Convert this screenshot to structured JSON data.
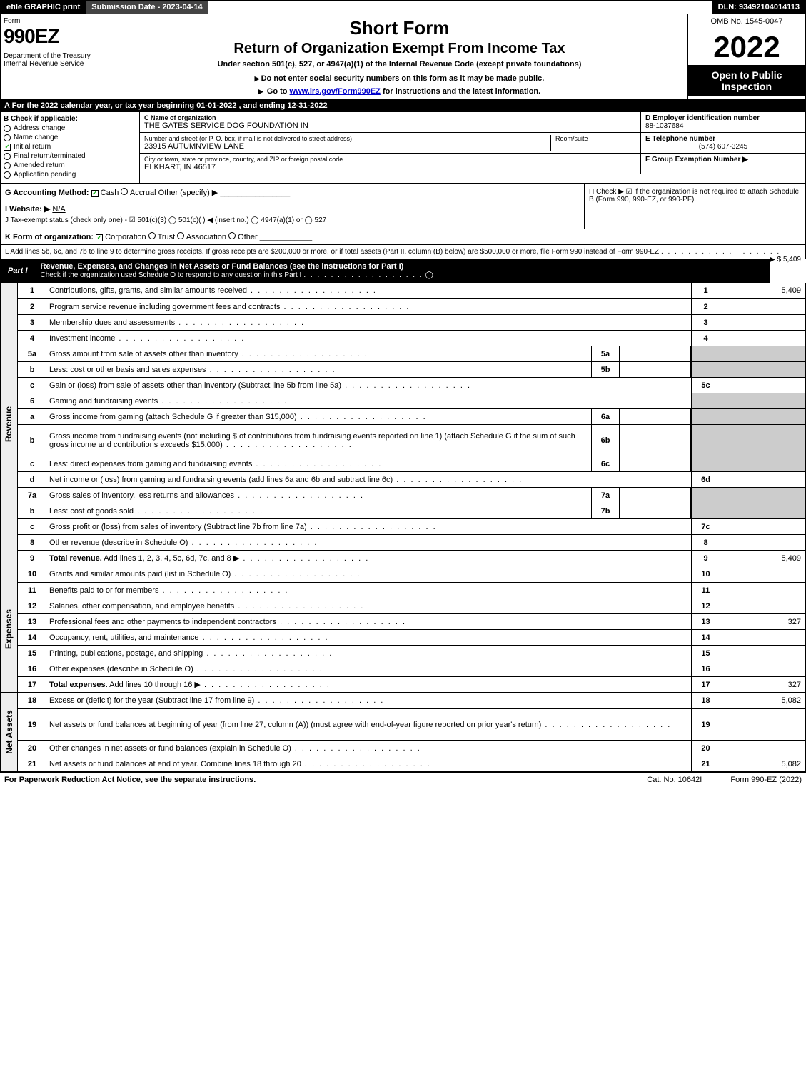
{
  "topbar": {
    "efile": "efile GRAPHIC print",
    "submission": "Submission Date - 2023-04-14",
    "dln": "DLN: 93492104014113"
  },
  "header": {
    "form_word": "Form",
    "form_number": "990EZ",
    "dept": "Department of the Treasury\nInternal Revenue Service",
    "short_form": "Short Form",
    "return_title": "Return of Organization Exempt From Income Tax",
    "under_section": "Under section 501(c), 527, or 4947(a)(1) of the Internal Revenue Code (except private foundations)",
    "do_not": "Do not enter social security numbers on this form as it may be made public.",
    "go_to_prefix": "Go to ",
    "go_to_link": "www.irs.gov/Form990EZ",
    "go_to_suffix": " for instructions and the latest information.",
    "omb": "OMB No. 1545-0047",
    "year": "2022",
    "open_to": "Open to Public Inspection"
  },
  "row_a": "A  For the 2022 calendar year, or tax year beginning 01-01-2022 , and ending 12-31-2022",
  "section_b": {
    "label": "B  Check if applicable:",
    "checks": [
      {
        "label": "Address change",
        "checked": false,
        "round": true
      },
      {
        "label": "Name change",
        "checked": false,
        "round": true
      },
      {
        "label": "Initial return",
        "checked": true,
        "round": false
      },
      {
        "label": "Final return/terminated",
        "checked": false,
        "round": true
      },
      {
        "label": "Amended return",
        "checked": false,
        "round": true
      },
      {
        "label": "Application pending",
        "checked": false,
        "round": true
      }
    ]
  },
  "section_c": {
    "name_label": "C Name of organization",
    "name": "THE GATES SERVICE DOG FOUNDATION IN",
    "addr_label": "Number and street (or P. O. box, if mail is not delivered to street address)",
    "addr": "23915 AUTUMNVIEW LANE",
    "room_label": "Room/suite",
    "city_label": "City or town, state or province, country, and ZIP or foreign postal code",
    "city": "ELKHART, IN  46517"
  },
  "section_de": {
    "d_label": "D Employer identification number",
    "d_val": "88-1037684",
    "e_label": "E Telephone number",
    "e_val": "(574) 607-3245",
    "f_label": "F Group Exemption Number ▶"
  },
  "row_g": {
    "label": "G Accounting Method:",
    "cash": "Cash",
    "accrual": "Accrual",
    "other": "Other (specify) ▶"
  },
  "row_h": {
    "text": "H  Check ▶ ☑ if the organization is not required to attach Schedule B (Form 990, 990-EZ, or 990-PF)."
  },
  "row_i": {
    "label": "I Website: ▶",
    "val": "N/A"
  },
  "row_j": "J Tax-exempt status (check only one) - ☑ 501(c)(3) ◯ 501(c)(  ) ◀ (insert no.) ◯ 4947(a)(1) or ◯ 527",
  "row_k": {
    "label": "K Form of organization:",
    "corp": "Corporation",
    "trust": "Trust",
    "assoc": "Association",
    "other": "Other"
  },
  "row_l": {
    "text": "L Add lines 5b, 6c, and 7b to line 9 to determine gross receipts. If gross receipts are $200,000 or more, or if total assets (Part II, column (B) below) are $500,000 or more, file Form 990 instead of Form 990-EZ",
    "val": "▶ $ 5,409"
  },
  "part1": {
    "label": "Part I",
    "title": "Revenue, Expenses, and Changes in Net Assets or Fund Balances (see the instructions for Part I)",
    "sub": "Check if the organization used Schedule O to respond to any question in this Part I",
    "sub_check": "◯"
  },
  "revenue_side": "Revenue",
  "expenses_side": "Expenses",
  "netassets_side": "Net Assets",
  "lines_rev": [
    {
      "n": "1",
      "desc": "Contributions, gifts, grants, and similar amounts received",
      "rn": "1",
      "rv": "5,409"
    },
    {
      "n": "2",
      "desc": "Program service revenue including government fees and contracts",
      "rn": "2",
      "rv": ""
    },
    {
      "n": "3",
      "desc": "Membership dues and assessments",
      "rn": "3",
      "rv": ""
    },
    {
      "n": "4",
      "desc": "Investment income",
      "rn": "4",
      "rv": ""
    },
    {
      "n": "5a",
      "desc": "Gross amount from sale of assets other than inventory",
      "sn": "5a",
      "sv": "",
      "grey_rt": true
    },
    {
      "n": "b",
      "desc": "Less: cost or other basis and sales expenses",
      "sn": "5b",
      "sv": "",
      "grey_rt": true
    },
    {
      "n": "c",
      "desc": "Gain or (loss) from sale of assets other than inventory (Subtract line 5b from line 5a)",
      "rn": "5c",
      "rv": ""
    },
    {
      "n": "6",
      "desc": "Gaming and fundraising events",
      "grey_rt": true,
      "no_rn": true
    },
    {
      "n": "a",
      "desc": "Gross income from gaming (attach Schedule G if greater than $15,000)",
      "sn": "6a",
      "sv": "",
      "grey_rt": true
    },
    {
      "n": "b",
      "desc": "Gross income from fundraising events (not including $                   of contributions from fundraising events reported on line 1) (attach Schedule G if the sum of such gross income and contributions exceeds $15,000)",
      "sn": "6b",
      "sv": "",
      "grey_rt": true,
      "tall": true
    },
    {
      "n": "c",
      "desc": "Less: direct expenses from gaming and fundraising events",
      "sn": "6c",
      "sv": "",
      "grey_rt": true
    },
    {
      "n": "d",
      "desc": "Net income or (loss) from gaming and fundraising events (add lines 6a and 6b and subtract line 6c)",
      "rn": "6d",
      "rv": ""
    },
    {
      "n": "7a",
      "desc": "Gross sales of inventory, less returns and allowances",
      "sn": "7a",
      "sv": "",
      "grey_rt": true
    },
    {
      "n": "b",
      "desc": "Less: cost of goods sold",
      "sn": "7b",
      "sv": "",
      "grey_rt": true
    },
    {
      "n": "c",
      "desc": "Gross profit or (loss) from sales of inventory (Subtract line 7b from line 7a)",
      "rn": "7c",
      "rv": ""
    },
    {
      "n": "8",
      "desc": "Other revenue (describe in Schedule O)",
      "rn": "8",
      "rv": ""
    },
    {
      "n": "9",
      "desc": "Total revenue. Add lines 1, 2, 3, 4, 5c, 6d, 7c, and 8   ▶",
      "rn": "9",
      "rv": "5,409",
      "bold": true
    }
  ],
  "lines_exp": [
    {
      "n": "10",
      "desc": "Grants and similar amounts paid (list in Schedule O)",
      "rn": "10",
      "rv": ""
    },
    {
      "n": "11",
      "desc": "Benefits paid to or for members",
      "rn": "11",
      "rv": ""
    },
    {
      "n": "12",
      "desc": "Salaries, other compensation, and employee benefits",
      "rn": "12",
      "rv": ""
    },
    {
      "n": "13",
      "desc": "Professional fees and other payments to independent contractors",
      "rn": "13",
      "rv": "327"
    },
    {
      "n": "14",
      "desc": "Occupancy, rent, utilities, and maintenance",
      "rn": "14",
      "rv": ""
    },
    {
      "n": "15",
      "desc": "Printing, publications, postage, and shipping",
      "rn": "15",
      "rv": ""
    },
    {
      "n": "16",
      "desc": "Other expenses (describe in Schedule O)",
      "rn": "16",
      "rv": ""
    },
    {
      "n": "17",
      "desc": "Total expenses. Add lines 10 through 16   ▶",
      "rn": "17",
      "rv": "327",
      "bold": true
    }
  ],
  "lines_na": [
    {
      "n": "18",
      "desc": "Excess or (deficit) for the year (Subtract line 17 from line 9)",
      "rn": "18",
      "rv": "5,082"
    },
    {
      "n": "19",
      "desc": "Net assets or fund balances at beginning of year (from line 27, column (A)) (must agree with end-of-year figure reported on prior year's return)",
      "rn": "19",
      "rv": "",
      "tall": true
    },
    {
      "n": "20",
      "desc": "Other changes in net assets or fund balances (explain in Schedule O)",
      "rn": "20",
      "rv": ""
    },
    {
      "n": "21",
      "desc": "Net assets or fund balances at end of year. Combine lines 18 through 20",
      "rn": "21",
      "rv": "5,082"
    }
  ],
  "footer": {
    "left": "For Paperwork Reduction Act Notice, see the separate instructions.",
    "mid": "Cat. No. 10642I",
    "right": "Form 990-EZ (2022)"
  }
}
